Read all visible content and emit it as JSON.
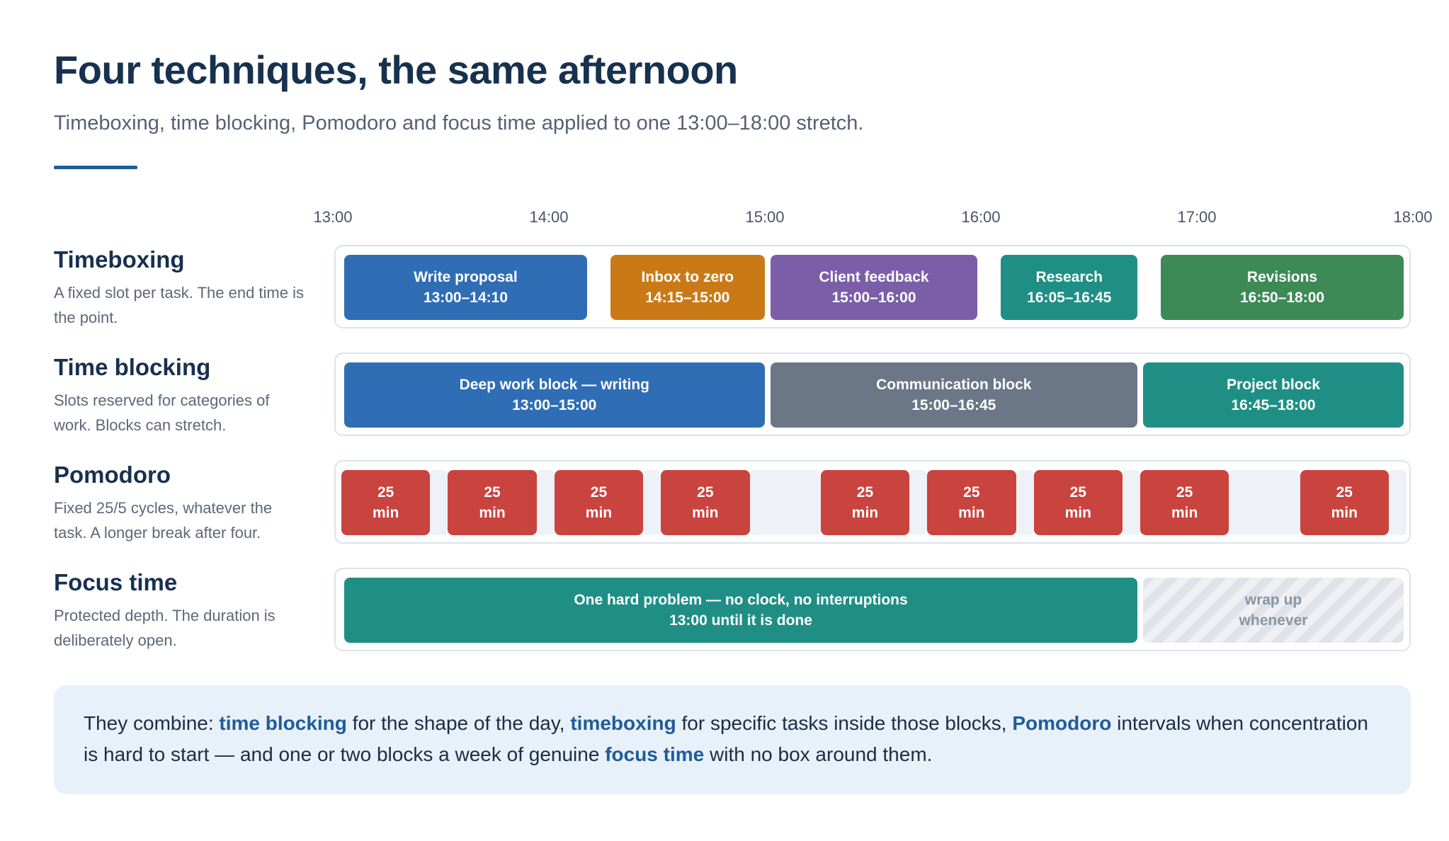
{
  "header": {
    "title": "Four techniques, the same afternoon",
    "subtitle": "Timeboxing, time blocking, Pomodoro and focus time applied to one 13:00–18:00 stretch."
  },
  "axis": {
    "start_minutes": 780,
    "end_minutes": 1080,
    "ticks": [
      "13:00",
      "14:00",
      "15:00",
      "16:00",
      "17:00",
      "18:00"
    ]
  },
  "rows": [
    {
      "id": "timeboxing",
      "title": "Timeboxing",
      "description": "A fixed slot per task. The end time is the point.",
      "blocks": [
        {
          "label": "Write proposal",
          "time": "13:00–14:10",
          "start": "13:00",
          "end": "14:10",
          "color": "#2f6db5"
        },
        {
          "label": "Inbox to zero",
          "time": "14:15–15:00",
          "start": "14:15",
          "end": "15:00",
          "color": "#c97a17"
        },
        {
          "label": "Client feedback",
          "time": "15:00–16:00",
          "start": "15:00",
          "end": "16:00",
          "color": "#7b5ea7"
        },
        {
          "label": "Research",
          "time": "16:05–16:45",
          "start": "16:05",
          "end": "16:45",
          "color": "#1f8f86"
        },
        {
          "label": "Revisions",
          "time": "16:50–18:00",
          "start": "16:50",
          "end": "18:00",
          "color": "#3d8a56"
        }
      ]
    },
    {
      "id": "time-blocking",
      "title": "Time blocking",
      "description": "Slots reserved for categories of work. Blocks can stretch.",
      "blocks": [
        {
          "label": "Deep work block — writing",
          "time": "13:00–15:00",
          "start": "13:00",
          "end": "15:00",
          "color": "#2f6db5"
        },
        {
          "label": "Communication block",
          "time": "15:00–16:45",
          "start": "15:00",
          "end": "16:45",
          "color": "#6b7787"
        },
        {
          "label": "Project block",
          "time": "16:45–18:00",
          "start": "16:45",
          "end": "18:00",
          "color": "#1f8f86"
        }
      ]
    },
    {
      "id": "pomodoro",
      "title": "Pomodoro",
      "description": "Fixed 25/5 cycles, whatever the task. A longer break after four.",
      "interval_color": "#c9433f",
      "break_color": "#eef1f5",
      "intervals": [
        {
          "value": "25",
          "unit": "min",
          "start": "13:00",
          "end": "13:25"
        },
        {
          "value": "25",
          "unit": "min",
          "start": "13:30",
          "end": "13:55"
        },
        {
          "value": "25",
          "unit": "min",
          "start": "14:00",
          "end": "14:25"
        },
        {
          "value": "25",
          "unit": "min",
          "start": "14:30",
          "end": "14:55"
        },
        {
          "value": "25",
          "unit": "min",
          "start": "15:15",
          "end": "15:40"
        },
        {
          "value": "25",
          "unit": "min",
          "start": "15:45",
          "end": "16:10"
        },
        {
          "value": "25",
          "unit": "min",
          "start": "16:15",
          "end": "16:40"
        },
        {
          "value": "25",
          "unit": "min",
          "start": "16:45",
          "end": "17:10"
        },
        {
          "value": "25",
          "unit": "min",
          "start": "17:30",
          "end": "17:55"
        }
      ],
      "breaks": [
        {
          "start": "13:25",
          "end": "13:30"
        },
        {
          "start": "13:55",
          "end": "14:00"
        },
        {
          "start": "14:25",
          "end": "14:30"
        },
        {
          "start": "14:55",
          "end": "15:15"
        },
        {
          "start": "15:40",
          "end": "15:45"
        },
        {
          "start": "16:10",
          "end": "16:15"
        },
        {
          "start": "16:40",
          "end": "16:45"
        },
        {
          "start": "17:10",
          "end": "17:30"
        },
        {
          "start": "17:55",
          "end": "18:00"
        }
      ]
    },
    {
      "id": "focus-time",
      "title": "Focus time",
      "description": "Protected depth. The duration is deliberately open.",
      "blocks": [
        {
          "label": "One hard problem — no clock, no interruptions",
          "time": "13:00 until it is done",
          "start": "13:00",
          "end": "16:45",
          "color": "#1f8f86"
        },
        {
          "label": "wrap up",
          "time": "whenever",
          "start": "16:45",
          "end": "18:00",
          "color": "#e3e7ec",
          "pattern": "hatched"
        }
      ]
    }
  ],
  "callout": {
    "segments": [
      {
        "text": "They combine: ",
        "em": false
      },
      {
        "text": "time blocking",
        "em": true
      },
      {
        "text": " for the shape of the day, ",
        "em": false
      },
      {
        "text": "timeboxing",
        "em": true
      },
      {
        "text": " for specific tasks inside those blocks, ",
        "em": false
      },
      {
        "text": "Pomodoro",
        "em": true
      },
      {
        "text": " intervals when concentration is hard to start — and one or two blocks a week of genuine ",
        "em": false
      },
      {
        "text": "focus time",
        "em": true
      },
      {
        "text": " with no box around them.",
        "em": false
      }
    ]
  }
}
